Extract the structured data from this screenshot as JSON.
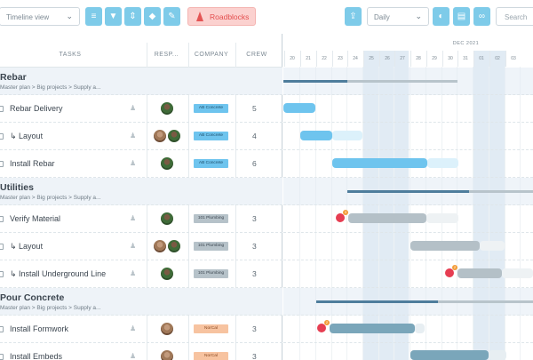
{
  "toolbar": {
    "view_select": "Timeline view",
    "roadblocks_label": "Roadblocks",
    "scale_select": "Daily",
    "search_label": "Search"
  },
  "columns": {
    "tasks": "TASKS",
    "responsible": "RESP...",
    "company": "COMPANY",
    "crew": "CREW"
  },
  "timeline": {
    "month": "DEC 2021",
    "days": [
      "20",
      "21",
      "22",
      "23",
      "24",
      "25",
      "26",
      "27",
      "28",
      "29",
      "30",
      "31",
      "01",
      "02",
      "03"
    ]
  },
  "groups": [
    {
      "title": "Rebar",
      "path": "Master plan  >  Big projects  >  Supply a...",
      "tasks": [
        {
          "name": "Rebar Delivery",
          "company": "AB Concrete",
          "crew": "5"
        },
        {
          "name": "↳ Layout",
          "company": "AB Concrete",
          "crew": "4"
        },
        {
          "name": "Install Rebar",
          "company": "AB Concrete",
          "crew": "6"
        }
      ]
    },
    {
      "title": "Utilities",
      "path": "Master plan  >  Big projects  >  Supply a...",
      "tasks": [
        {
          "name": "Verify Material",
          "company": "101 Plumbing",
          "crew": "3"
        },
        {
          "name": "↳ Layout",
          "company": "101 Plumbing",
          "crew": "3"
        },
        {
          "name": "↳ Install Underground Line",
          "company": "101 Plumbing",
          "crew": "3"
        }
      ]
    },
    {
      "title": "Pour Concrete",
      "path": "Master plan  >  Big projects  >  Supply a...",
      "tasks": [
        {
          "name": "Install Formwork",
          "company": "NorCal",
          "crew": "3"
        },
        {
          "name": "Install Embeds",
          "company": "NorCal",
          "crew": "3"
        }
      ]
    }
  ],
  "colors": {
    "accent": "#7ecbe9",
    "bar_blue": "#6ec4ee",
    "bar_grey": "#b4c0c7",
    "bar_slate": "#7aa6ba",
    "summary": "#4e7d9c",
    "company_blue": "#6ec4ee",
    "company_grey": "#b6c2c9",
    "company_orange": "#f7c3a0",
    "roadblock": "#e63e52"
  },
  "roadblock_counts": {
    "verify_material": "3",
    "install_underground": "2",
    "install_formwork": "2"
  }
}
